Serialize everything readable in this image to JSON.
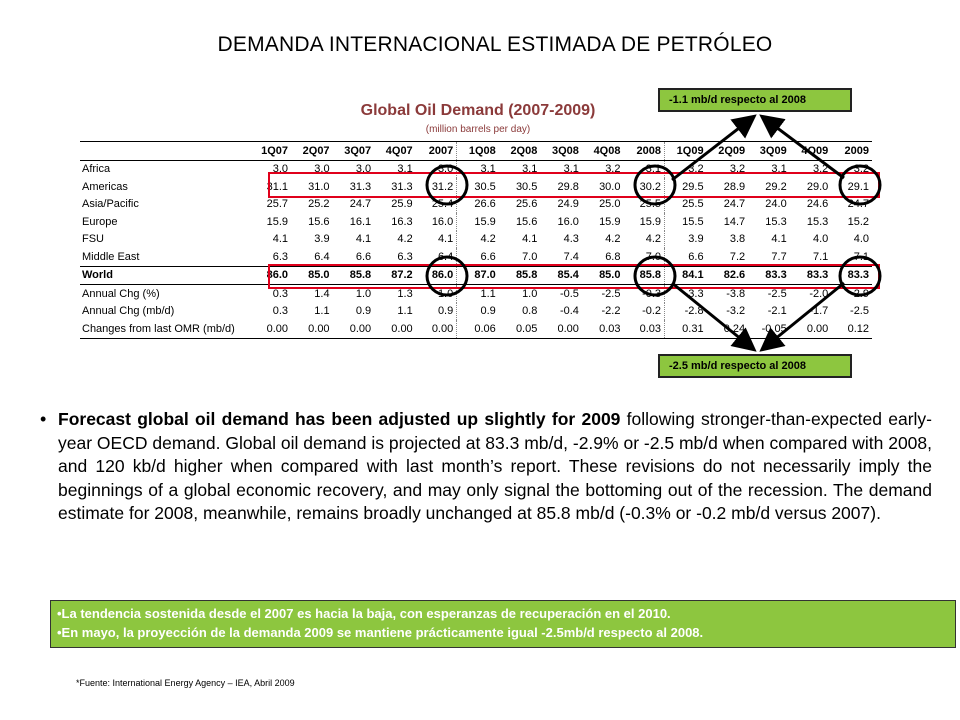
{
  "main_title": "DEMANDA INTERNACIONAL ESTIMADA DE PETRÓLEO",
  "callouts": {
    "top": "-1.1 mb/d respecto  al 2008",
    "bottom": "-2.5 mb/d respecto  al 2008"
  },
  "table": {
    "title": "Global Oil Demand (2007-2009)",
    "unit": "(million barrels per day)",
    "columns": [
      "1Q07",
      "2Q07",
      "3Q07",
      "4Q07",
      "2007",
      "1Q08",
      "2Q08",
      "3Q08",
      "4Q08",
      "2008",
      "1Q09",
      "2Q09",
      "3Q09",
      "4Q09",
      "2009"
    ],
    "rows": [
      {
        "label": "Africa",
        "values": [
          "3.0",
          "3.0",
          "3.0",
          "3.1",
          "3.0",
          "3.1",
          "3.1",
          "3.1",
          "3.2",
          "3.1",
          "3.2",
          "3.2",
          "3.1",
          "3.2",
          "3.2"
        ]
      },
      {
        "label": "Americas",
        "values": [
          "31.1",
          "31.0",
          "31.3",
          "31.3",
          "31.2",
          "30.5",
          "30.5",
          "29.8",
          "30.0",
          "30.2",
          "29.5",
          "28.9",
          "29.2",
          "29.0",
          "29.1"
        ]
      },
      {
        "label": "Asia/Pacific",
        "values": [
          "25.7",
          "25.2",
          "24.7",
          "25.9",
          "25.4",
          "26.6",
          "25.6",
          "24.9",
          "25.0",
          "25.5",
          "25.5",
          "24.7",
          "24.0",
          "24.6",
          "24.7"
        ]
      },
      {
        "label": "Europe",
        "values": [
          "15.9",
          "15.6",
          "16.1",
          "16.3",
          "16.0",
          "15.9",
          "15.6",
          "16.0",
          "15.9",
          "15.9",
          "15.5",
          "14.7",
          "15.3",
          "15.3",
          "15.2"
        ]
      },
      {
        "label": "FSU",
        "values": [
          "4.1",
          "3.9",
          "4.1",
          "4.2",
          "4.1",
          "4.2",
          "4.1",
          "4.3",
          "4.2",
          "4.2",
          "3.9",
          "3.8",
          "4.1",
          "4.0",
          "4.0"
        ]
      },
      {
        "label": "Middle East",
        "values": [
          "6.3",
          "6.4",
          "6.6",
          "6.3",
          "6.4",
          "6.6",
          "7.0",
          "7.4",
          "6.8",
          "7.0",
          "6.6",
          "7.2",
          "7.7",
          "7.1",
          "7.1"
        ]
      },
      {
        "label": "World",
        "values": [
          "86.0",
          "85.0",
          "85.8",
          "87.2",
          "86.0",
          "87.0",
          "85.8",
          "85.4",
          "85.0",
          "85.8",
          "84.1",
          "82.6",
          "83.3",
          "83.3",
          "83.3"
        ]
      },
      {
        "label": "Annual Chg (%)",
        "values": [
          "0.3",
          "1.4",
          "1.0",
          "1.3",
          "1.0",
          "1.1",
          "1.0",
          "-0.5",
          "-2.5",
          "-0.3",
          "-3.3",
          "-3.8",
          "-2.5",
          "-2.0",
          "-2.9"
        ]
      },
      {
        "label": "Annual Chg (mb/d)",
        "values": [
          "0.3",
          "1.1",
          "0.9",
          "1.1",
          "0.9",
          "0.9",
          "0.8",
          "-0.4",
          "-2.2",
          "-0.2",
          "-2.8",
          "-3.2",
          "-2.1",
          "-1.7",
          "-2.5"
        ]
      },
      {
        "label": "Changes from last OMR (mb/d)",
        "values": [
          "0.00",
          "0.00",
          "0.00",
          "0.00",
          "0.00",
          "0.06",
          "0.05",
          "0.00",
          "0.03",
          "0.03",
          "0.31",
          "0.24",
          "-0.05",
          "0.00",
          "0.12"
        ]
      }
    ]
  },
  "paragraph": {
    "bold_part": "Forecast global oil demand has been adjusted up slightly for 2009",
    "rest": " following stronger-than-expected early-year OECD demand.  Global oil demand is projected at 83.3 mb/d, -2.9% or -2.5 mb/d when compared with 2008, and 120 kb/d higher when compared with last month’s report.  These revisions do not necessarily imply the beginnings of a global economic recovery, and may only signal the bottoming out of the recession.  The demand estimate for 2008, meanwhile, remains broadly unchanged at 85.8 mb/d (-0.3% or -0.2 mb/d versus 2007)."
  },
  "green_box": [
    "•La tendencia sostenida desde el 2007 es hacia la baja, con esperanzas de recuperación en el 2010.",
    "•En mayo, la proyección de la demanda 2009 se mantiene prácticamente igual -2.5mb/d respecto al 2008."
  ],
  "source": "*Fuente: International Energy Agency – IEA, Abril 2009",
  "colors": {
    "accent_green": "#8dc63f",
    "highlight_red": "#e0001b",
    "title_brown": "#8b3a3a"
  }
}
